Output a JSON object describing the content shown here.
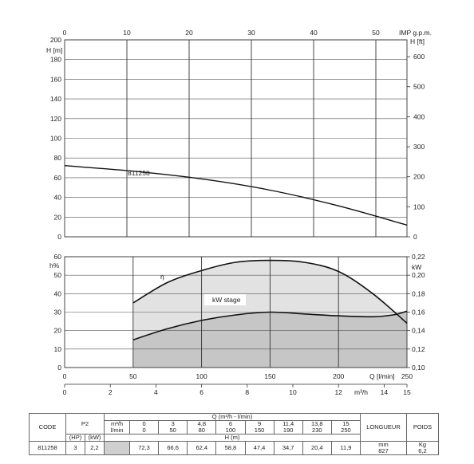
{
  "chart_data": [
    {
      "type": "line",
      "title": "",
      "model_label": "811258",
      "y_left": {
        "label": "H [m]",
        "lim": [
          0,
          200
        ],
        "ticks": [
          0,
          20,
          40,
          60,
          80,
          100,
          120,
          140,
          160,
          180,
          200
        ]
      },
      "y_right": {
        "label": "H [ft]",
        "lim": [
          0,
          656
        ],
        "ticks": [
          0,
          100,
          200,
          300,
          400,
          500,
          600
        ]
      },
      "x_top": {
        "label": "IMP g.p.m.",
        "lim": [
          0,
          55
        ],
        "ticks": [
          0,
          10,
          20,
          30,
          40,
          50
        ]
      },
      "x_lim_lpm": [
        0,
        250
      ],
      "grid": true,
      "series": [
        {
          "x": [
            0,
            50,
            100,
            150,
            200,
            250
          ],
          "y": [
            72.3,
            66.6,
            58.8,
            47.4,
            31.4,
            11.9
          ]
        }
      ]
    },
    {
      "type": "area",
      "y_left": {
        "label": "h%",
        "lim": [
          0,
          60
        ],
        "ticks": [
          0,
          10,
          20,
          30,
          40,
          50,
          60
        ]
      },
      "y_right": {
        "label": "kW",
        "lim": [
          0.1,
          0.22
        ],
        "ticks": [
          "0,10",
          "0,12",
          "0,14",
          "0,16",
          "0,18",
          "0,20",
          "0,22"
        ]
      },
      "x_bottom": {
        "label": "Q [l/min]",
        "lim": [
          0,
          250
        ],
        "ticks": [
          0,
          50,
          100,
          150,
          200,
          250
        ]
      },
      "x_bottom2": {
        "label": "m³/h",
        "lim": [
          0,
          15
        ],
        "ticks": [
          0,
          2,
          4,
          6,
          8,
          10,
          12,
          14,
          15
        ]
      },
      "annotation": "kW stage",
      "eta_symbol": "η",
      "series": [
        {
          "curve": "efficiency",
          "axis": "h%",
          "x": [
            50,
            75,
            100,
            125,
            150,
            175,
            200,
            225,
            250
          ],
          "y": [
            35,
            46,
            52.5,
            57,
            58,
            57,
            52,
            40,
            24
          ]
        },
        {
          "curve": "power",
          "axis": "kW",
          "x": [
            50,
            75,
            100,
            125,
            150,
            175,
            200,
            225,
            240,
            250
          ],
          "y": [
            0.13,
            0.142,
            0.151,
            0.157,
            0.16,
            0.158,
            0.156,
            0.155,
            0.157,
            0.161
          ]
        }
      ]
    }
  ],
  "table": {
    "header_q": "Q (m³/h - l/min)",
    "code_label": "CODE",
    "p2_label": "P2",
    "units_m3h": "m³/h",
    "units_lmin": "l/min",
    "m3h": [
      "0",
      "3",
      "4,8",
      "6",
      "9",
      "11,4",
      "13,8",
      "15"
    ],
    "lmin": [
      "0",
      "50",
      "80",
      "100",
      "150",
      "190",
      "230",
      "250"
    ],
    "h_label": "H (m)",
    "hp_label": "(HP)",
    "kw_label": "(kW)",
    "longueur_label": "LONGUEUR",
    "poids_label": "POIDS",
    "mm_label": "mm",
    "kg_label": "Kg",
    "row": {
      "code": "811258",
      "hp": "3",
      "kw": "2,2",
      "h": [
        "72,3",
        "66,6",
        "62,4",
        "58,8",
        "47,4",
        "34,7",
        "20,4",
        "11,9"
      ],
      "longueur": "827",
      "poids": "6,2"
    }
  }
}
